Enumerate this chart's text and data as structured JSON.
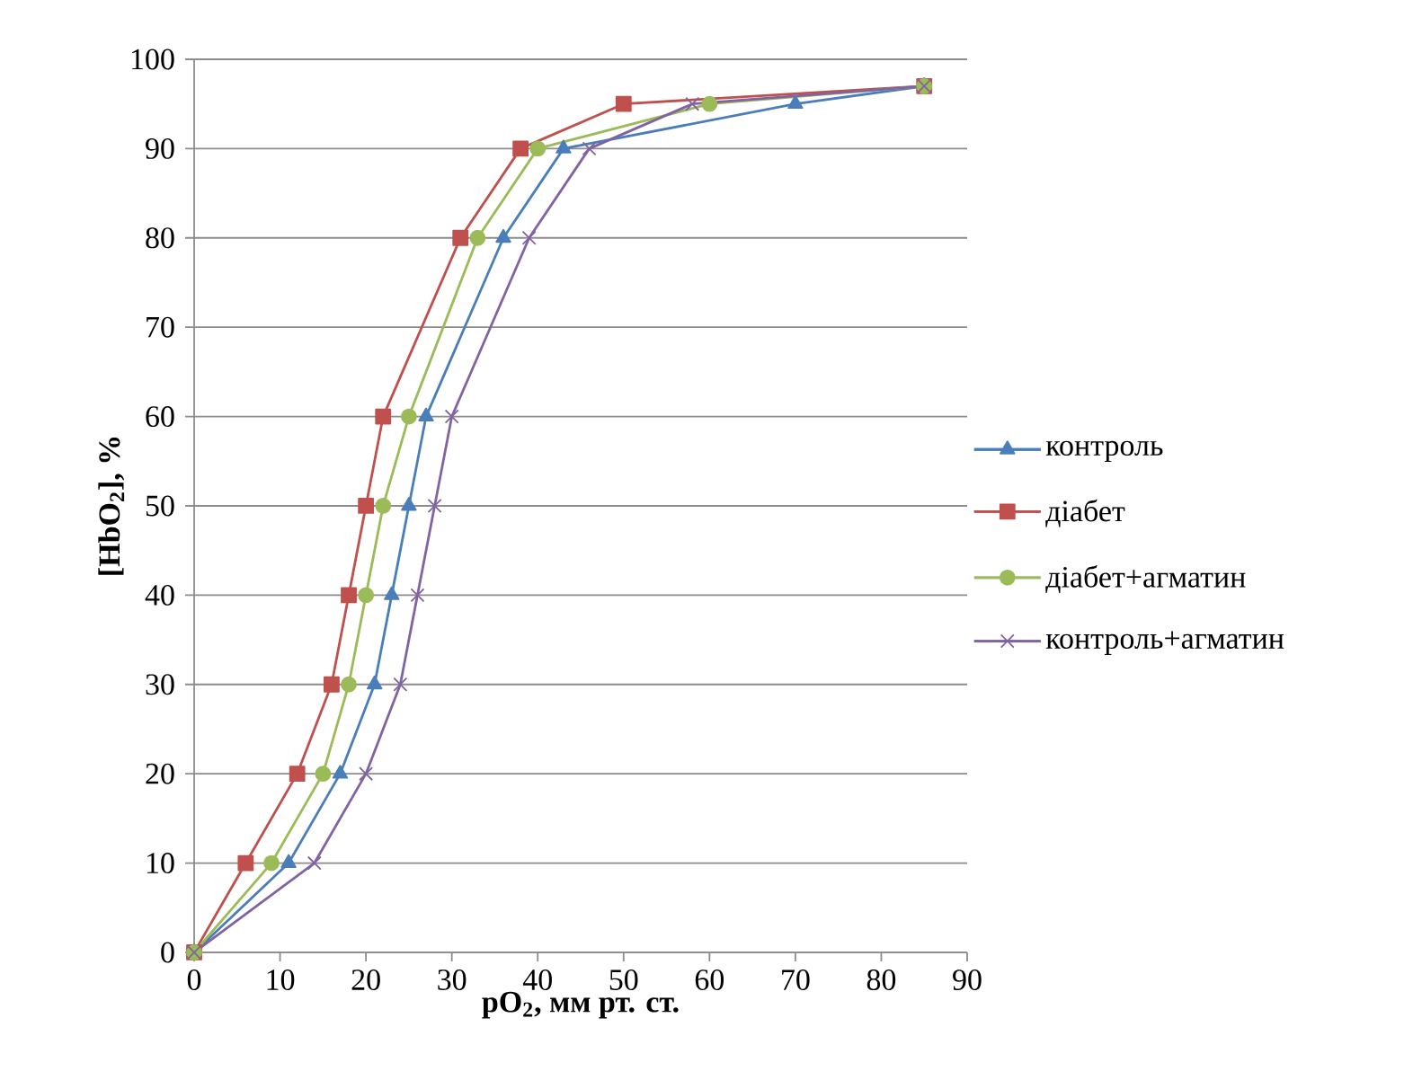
{
  "chart_data": {
    "type": "line",
    "xlabel": "pO$_{2}$, мм рт. ст.",
    "ylabel": "[HbO$_{2}$], %",
    "xlim": [
      0,
      90
    ],
    "xticks": [
      0,
      10,
      20,
      30,
      40,
      50,
      60,
      70,
      80,
      90
    ],
    "ylim": [
      0,
      100
    ],
    "yticks": [
      0,
      10,
      20,
      30,
      40,
      50,
      60,
      70,
      80,
      90,
      100
    ],
    "grid": "y",
    "legend": "right",
    "line_style": "solid",
    "series": [
      {
        "name": "контроль",
        "color": "#4a7ebb",
        "marker": "triangle",
        "x": [
          0,
          11,
          17,
          21,
          23,
          25,
          27,
          36,
          43,
          70,
          85
        ],
        "values": [
          0,
          10,
          20,
          30,
          40,
          50,
          60,
          80,
          90,
          95,
          97
        ]
      },
      {
        "name": "діабет",
        "color": "#c0504d",
        "marker": "square",
        "x": [
          0,
          6,
          12,
          16,
          18,
          20,
          22,
          31,
          38,
          50,
          85
        ],
        "values": [
          0,
          10,
          20,
          30,
          40,
          50,
          60,
          80,
          90,
          95,
          97
        ]
      },
      {
        "name": "діабет+агматин",
        "color": "#9bbb59",
        "marker": "circle",
        "x": [
          0,
          9,
          15,
          18,
          20,
          22,
          25,
          33,
          40,
          60,
          85
        ],
        "values": [
          0,
          10,
          20,
          30,
          40,
          50,
          60,
          80,
          90,
          95,
          97
        ]
      },
      {
        "name": "контроль+агматин",
        "color": "#8064a2",
        "marker": "cross",
        "x": [
          0,
          14,
          20,
          24,
          26,
          28,
          30,
          39,
          46,
          58,
          85
        ],
        "values": [
          0,
          10,
          20,
          30,
          40,
          50,
          60,
          80,
          90,
          95,
          97
        ]
      }
    ]
  }
}
